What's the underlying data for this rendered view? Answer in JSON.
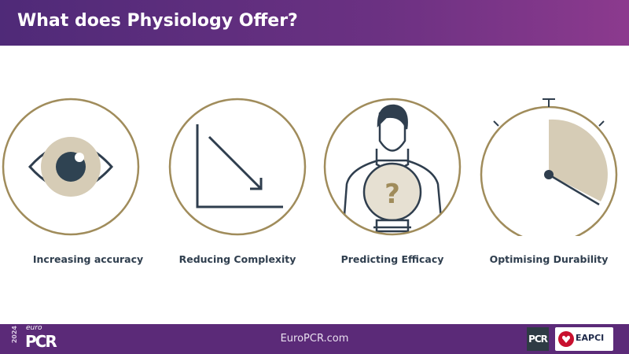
{
  "header": {
    "title": "What does Physiology Offer?"
  },
  "items": [
    {
      "label": "Increasing accuracy",
      "icon": "eye-icon"
    },
    {
      "label": "Reducing Complexity",
      "icon": "trend-down-icon"
    },
    {
      "label": "Predicting Efficacy",
      "icon": "doctor-crystal-ball-icon"
    },
    {
      "label": "Optimising Durability",
      "icon": "stopwatch-icon"
    }
  ],
  "footer": {
    "url": "EuroPCR.com",
    "year": "2024",
    "logo_euro": "euro",
    "logo_pcr": "PCR",
    "pcr_badge": "PCR",
    "eapci": "EAPCI"
  },
  "colors": {
    "purple": "#5b2a78",
    "gold": "#a08c5b",
    "beige": "#d6ccb6",
    "navy": "#2f3e4e"
  }
}
